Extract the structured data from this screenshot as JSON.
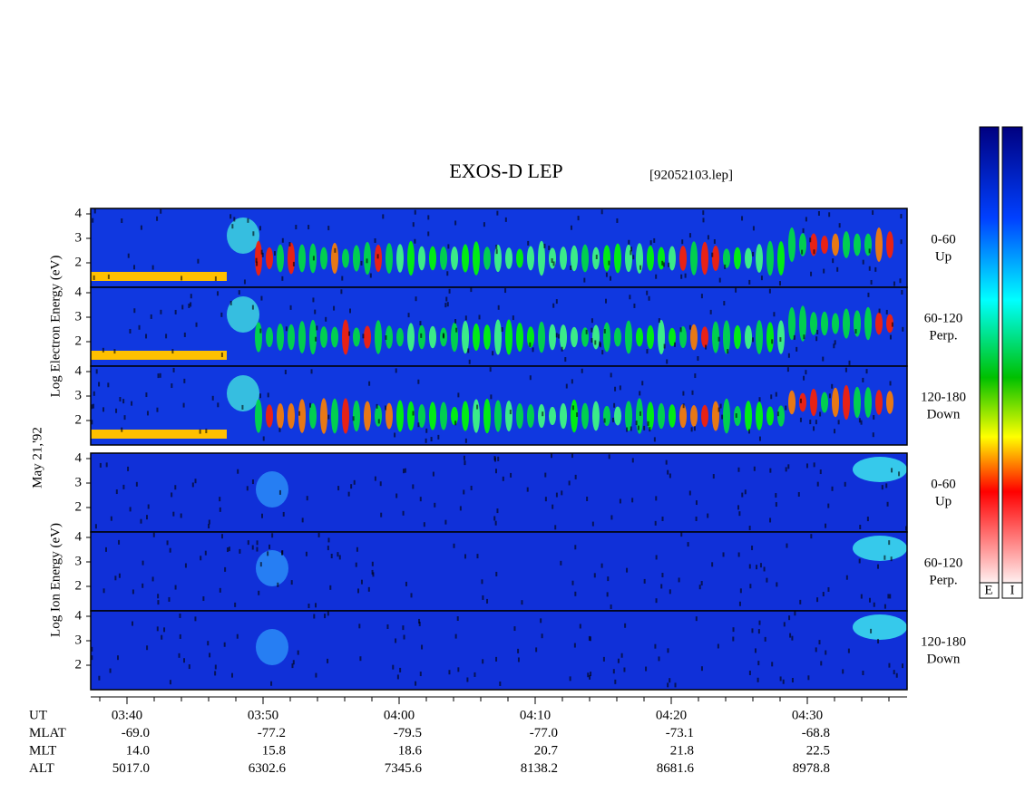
{
  "title": "EXOS-D LEP",
  "file": "[92052103.lep]",
  "electron_axis_label": "Log Electron Energy (eV)",
  "date": "May 21,'92",
  "ion_axis_label": "Log Ion Energy (eV)",
  "panels": [
    {
      "species": "electron",
      "yticks": [
        2,
        3,
        4
      ],
      "pitch": "0-60",
      "direction": "Up"
    },
    {
      "species": "electron",
      "yticks": [
        2,
        3,
        4
      ],
      "pitch": "60-120",
      "direction": "Perp."
    },
    {
      "species": "electron",
      "yticks": [
        2,
        3,
        4
      ],
      "pitch": "120-180",
      "direction": "Down"
    },
    {
      "species": "ion",
      "yticks": [
        2,
        3,
        4
      ],
      "pitch": "0-60",
      "direction": "Up"
    },
    {
      "species": "ion",
      "yticks": [
        2,
        3,
        4
      ],
      "pitch": "60-120",
      "direction": "Perp."
    },
    {
      "species": "ion",
      "yticks": [
        2,
        3,
        4
      ],
      "pitch": "120-180",
      "direction": "Down"
    }
  ],
  "ephemeris": {
    "rows": [
      "UT",
      "MLAT",
      "MLT",
      "ALT"
    ],
    "columns": [
      [
        "03:40",
        "-69.0",
        "14.0",
        "5017.0"
      ],
      [
        "03:50",
        "-77.2",
        "15.8",
        "6302.6"
      ],
      [
        "04:00",
        "-79.5",
        "18.6",
        "7345.6"
      ],
      [
        "04:10",
        "-77.0",
        "20.7",
        "8138.2"
      ],
      [
        "04:20",
        "-73.1",
        "21.8",
        "8681.6"
      ],
      [
        "04:30",
        "-68.8",
        "22.5",
        "8978.8"
      ]
    ]
  },
  "colorbar_labels": [
    "E",
    "I"
  ]
}
